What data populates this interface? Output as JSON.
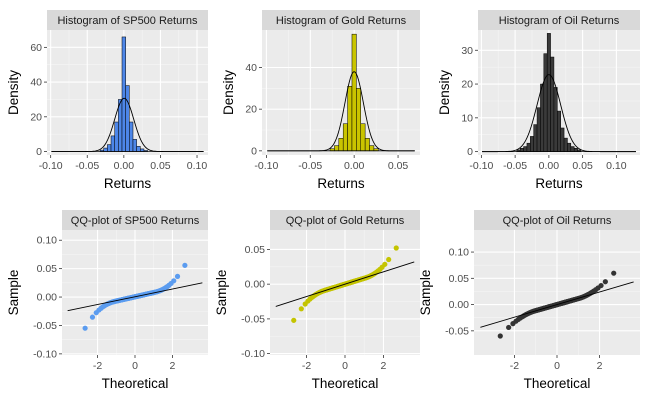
{
  "chart_data": [
    {
      "type": "bar",
      "title": "Histogram of SP500 Returns",
      "xlabel": "Returns",
      "ylabel": "Density",
      "xlim": [
        -0.105,
        0.115
      ],
      "ylim": [
        -2,
        70
      ],
      "xticks": [
        -0.1,
        -0.05,
        0.0,
        0.05,
        0.1
      ],
      "xtick_labels": [
        "-0.10",
        "-0.05",
        "0.00",
        "0.05",
        "0.10"
      ],
      "yticks": [
        0,
        20,
        40,
        60
      ],
      "ytick_labels": [
        "0",
        "20",
        "40",
        "60"
      ],
      "fill": "#4d86e8",
      "bins": {
        "x": [
          -0.03,
          -0.025,
          -0.02,
          -0.015,
          -0.01,
          -0.005,
          0.0,
          0.005,
          0.01,
          0.015,
          0.02,
          0.025,
          0.03
        ],
        "width": 0.005,
        "density": [
          0.8,
          2.0,
          4.0,
          9.0,
          17.0,
          30.0,
          66.0,
          38.0,
          17.0,
          7.0,
          3.0,
          1.5,
          0.6
        ]
      },
      "normal_curve": {
        "mean": 0.0005,
        "sd": 0.013
      }
    },
    {
      "type": "bar",
      "title": "Histogram of Gold Returns",
      "xlabel": "Returns",
      "ylabel": "Density",
      "xlim": [
        -0.105,
        0.075
      ],
      "ylim": [
        -2,
        58
      ],
      "xticks": [
        -0.1,
        -0.05,
        0.0,
        0.05
      ],
      "xtick_labels": [
        "-0.10",
        "-0.05",
        "0.00",
        "0.05"
      ],
      "yticks": [
        0,
        20,
        40
      ],
      "ytick_labels": [
        "0",
        "20",
        "40"
      ],
      "fill": "#c9c400",
      "bins": {
        "x": [
          -0.025,
          -0.02,
          -0.015,
          -0.01,
          -0.005,
          0.0,
          0.005,
          0.01,
          0.015,
          0.02,
          0.025
        ],
        "width": 0.005,
        "density": [
          1.0,
          2.5,
          6.0,
          13.0,
          31.0,
          56.0,
          30.0,
          13.0,
          6.0,
          2.5,
          1.0
        ]
      },
      "normal_curve": {
        "mean": 0.0,
        "sd": 0.0105
      }
    },
    {
      "type": "bar",
      "title": "Histogram of Oil Returns",
      "xlabel": "Returns",
      "ylabel": "Density",
      "xlim": [
        -0.105,
        0.135
      ],
      "ylim": [
        -1,
        36
      ],
      "xticks": [
        -0.1,
        -0.05,
        0.0,
        0.05,
        0.1
      ],
      "xtick_labels": [
        "-0.10",
        "-0.05",
        "0.00",
        "0.05",
        "0.10"
      ],
      "yticks": [
        0,
        10,
        20,
        30
      ],
      "ytick_labels": [
        "0",
        "10",
        "20",
        "30"
      ],
      "fill": "#3a3a3a",
      "bins": {
        "x": [
          -0.045,
          -0.04,
          -0.035,
          -0.03,
          -0.025,
          -0.02,
          -0.015,
          -0.01,
          -0.005,
          0.0,
          0.005,
          0.01,
          0.015,
          0.02,
          0.025,
          0.03,
          0.035,
          0.04,
          0.045
        ],
        "width": 0.005,
        "density": [
          0.5,
          1.0,
          1.5,
          2.5,
          4.5,
          8.0,
          13.0,
          20.0,
          29.0,
          35.0,
          28.0,
          19.0,
          12.0,
          7.0,
          4.0,
          2.5,
          1.5,
          1.0,
          0.5
        ]
      },
      "normal_curve": {
        "mean": 0.0,
        "sd": 0.0175
      }
    },
    {
      "type": "scatter",
      "title": "QQ-plot of SP500 Returns",
      "xlabel": "Theoretical",
      "ylabel": "Sample",
      "xlim": [
        -3.9,
        3.9
      ],
      "ylim": [
        -0.102,
        0.118
      ],
      "xticks": [
        -2,
        0,
        2
      ],
      "xtick_labels": [
        "-2",
        "0",
        "2"
      ],
      "yticks": [
        -0.1,
        -0.05,
        0.0,
        0.05,
        0.1
      ],
      "ytick_labels": [
        "-0.10",
        "-0.05",
        "0.00",
        "0.05",
        "0.10"
      ],
      "color": "#5b9cf0",
      "qq": {
        "theoretical_range": [
          -3.6,
          3.6
        ],
        "median": 0.0005,
        "center_scale": 0.0075,
        "tail_k": 0.012,
        "tail_start": 1.05,
        "tail_power": 2.25
      },
      "reference_line": {
        "slope": 0.0068,
        "intercept": 0.0005
      }
    },
    {
      "type": "scatter",
      "title": "QQ-plot of Gold Returns",
      "xlabel": "Theoretical",
      "ylabel": "Sample",
      "xlim": [
        -3.9,
        3.9
      ],
      "ylim": [
        -0.102,
        0.078
      ],
      "xticks": [
        -2,
        0,
        2
      ],
      "xtick_labels": [
        "-2",
        "0",
        "2"
      ],
      "yticks": [
        -0.1,
        -0.05,
        0.0,
        0.05
      ],
      "ytick_labels": [
        "-0.10",
        "-0.05",
        "0.00",
        "0.05"
      ],
      "color": "#c4c400",
      "qq": {
        "theoretical_range": [
          -3.6,
          3.6
        ],
        "median": 0.0,
        "center_scale": 0.0085,
        "tail_k": 0.0105,
        "tail_start": 1.05,
        "tail_power": 2.15
      },
      "reference_line": {
        "slope": 0.0089,
        "intercept": 0.0
      }
    },
    {
      "type": "scatter",
      "title": "QQ-plot of Oil Returns",
      "xlabel": "Theoretical",
      "ylabel": "Sample",
      "xlim": [
        -3.9,
        3.9
      ],
      "ylim": [
        -0.096,
        0.142
      ],
      "xticks": [
        -2,
        0,
        2
      ],
      "xtick_labels": [
        "-2",
        "0",
        "2"
      ],
      "yticks": [
        -0.05,
        0.0,
        0.05,
        0.1
      ],
      "ytick_labels": [
        "-0.05",
        "0.00",
        "0.05",
        "0.10"
      ],
      "color": "#333333",
      "qq": {
        "theoretical_range": [
          -3.6,
          3.6
        ],
        "median": 0.0,
        "center_scale": 0.0115,
        "tail_k": 0.012,
        "tail_start": 1.05,
        "tail_power": 1.85
      },
      "reference_line": {
        "slope": 0.012,
        "intercept": 0.0
      }
    }
  ]
}
